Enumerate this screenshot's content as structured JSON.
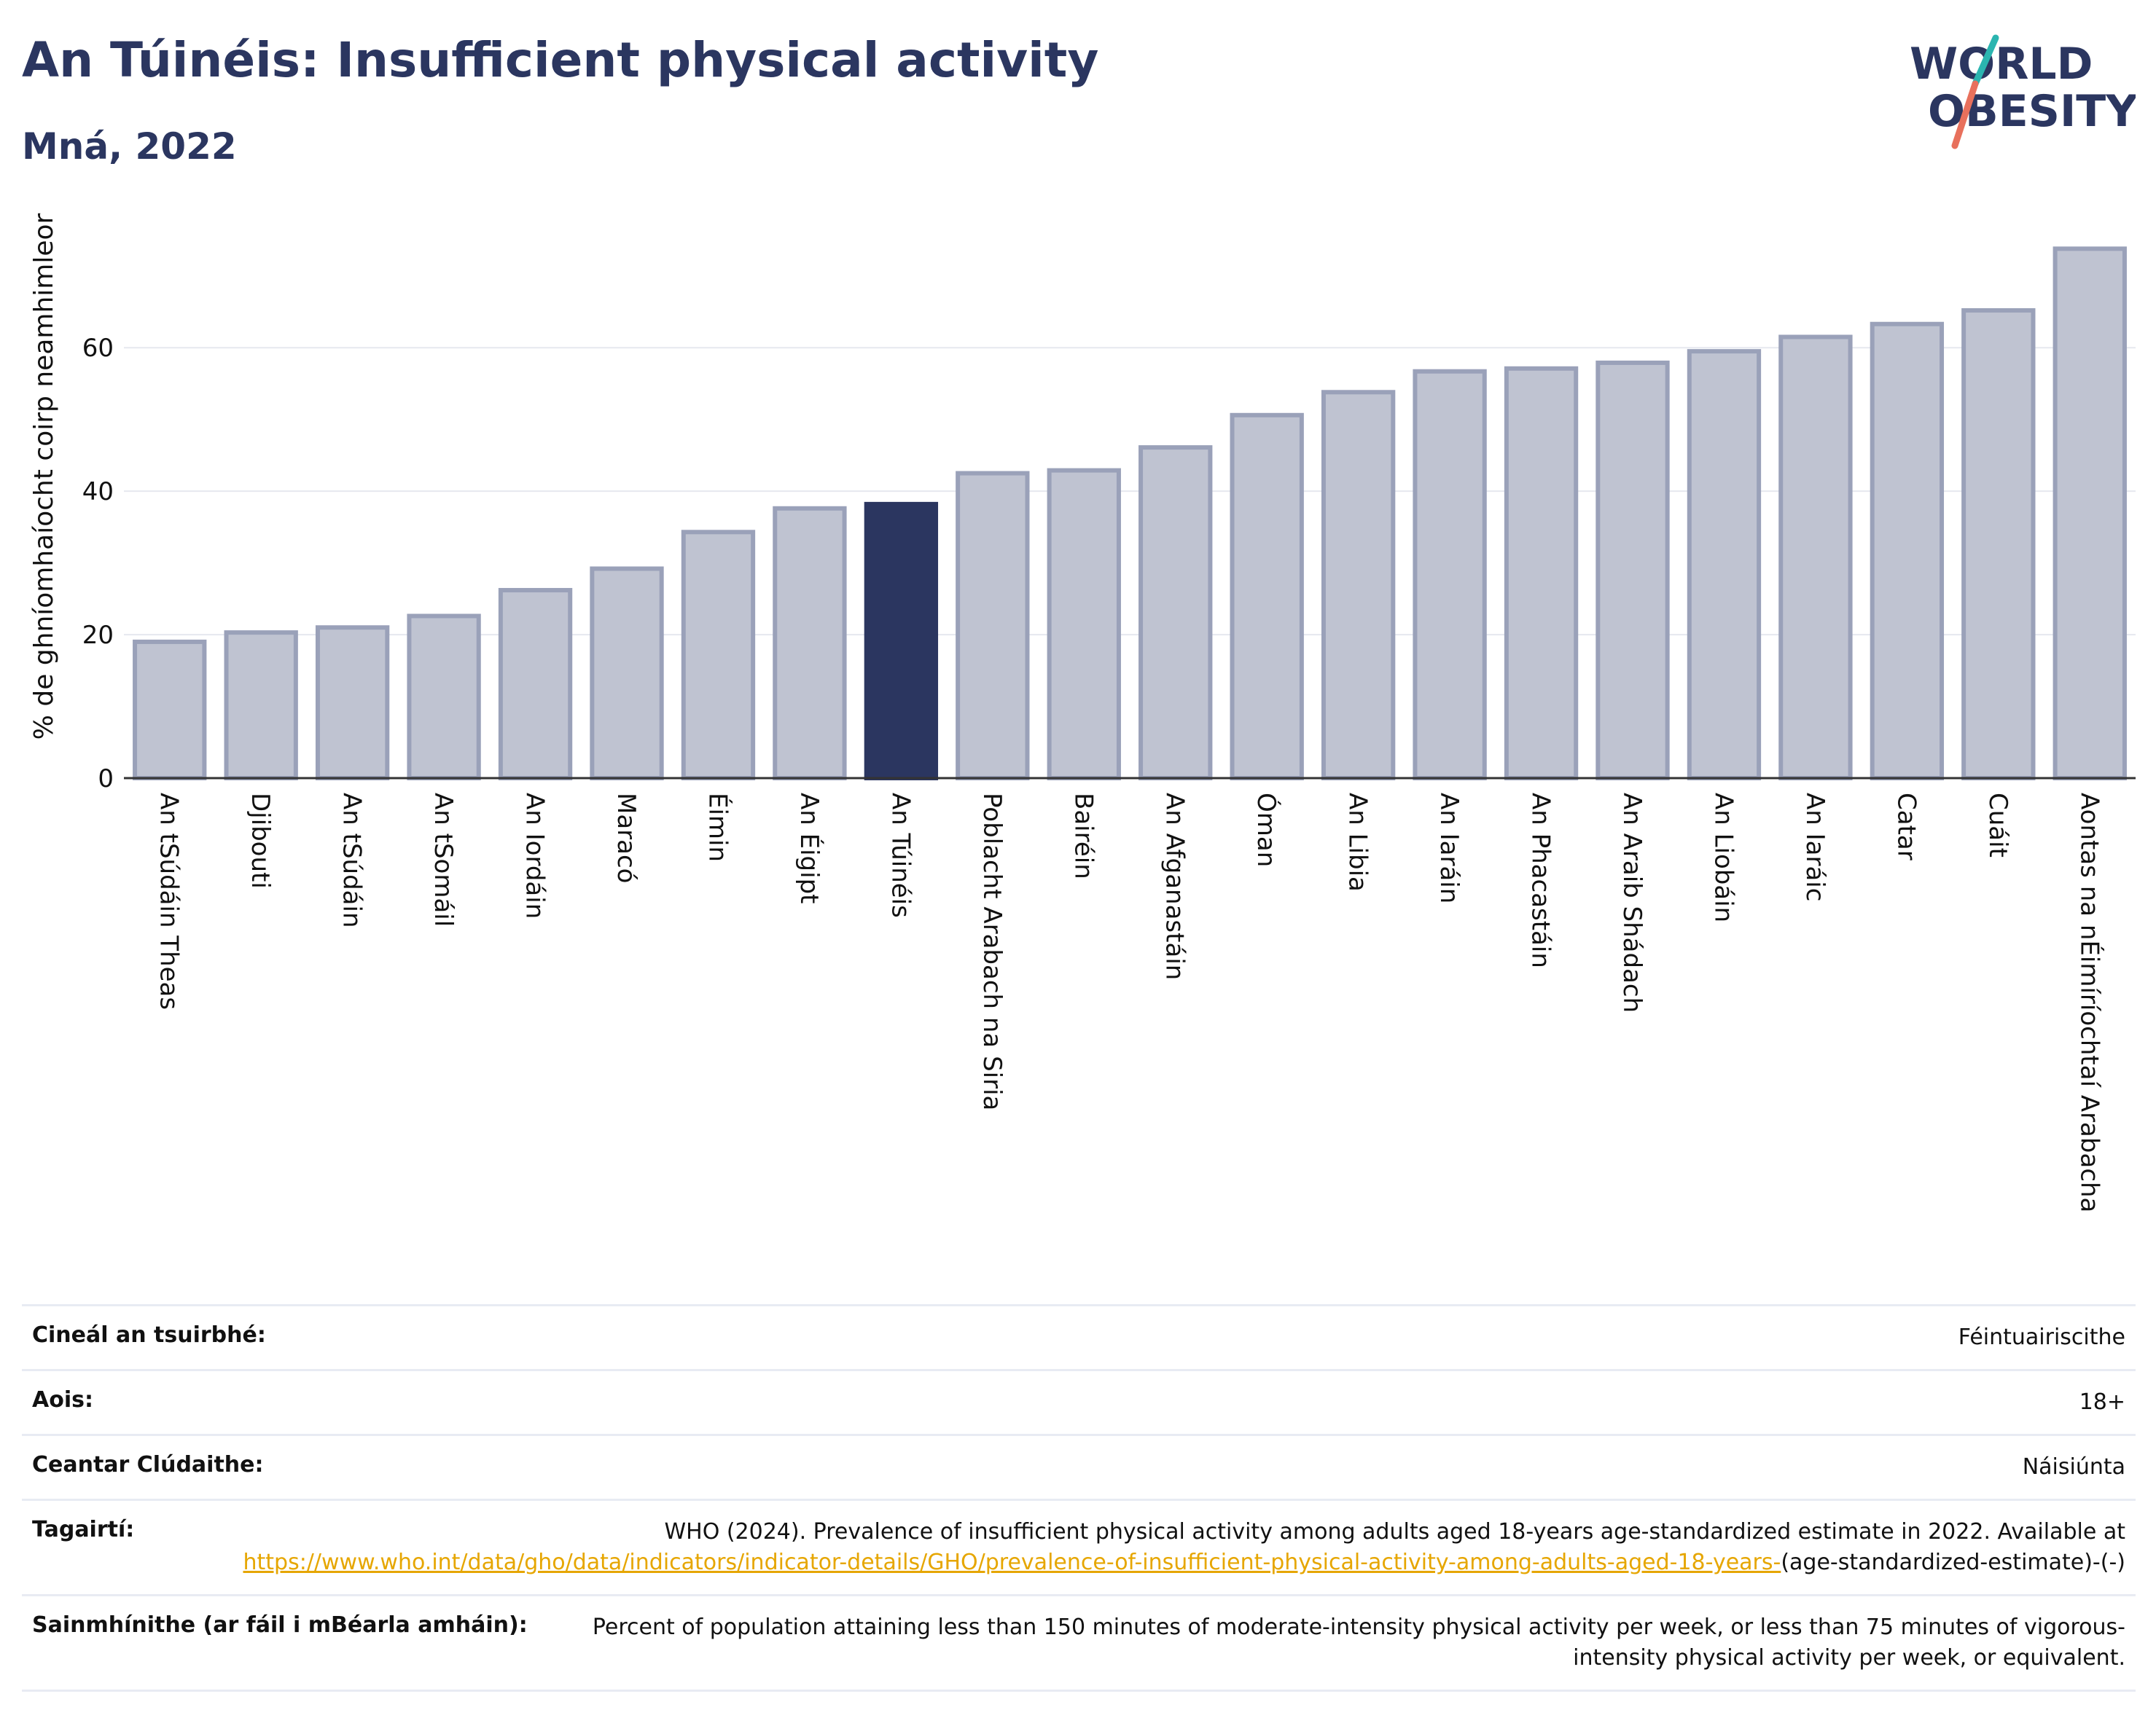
{
  "header": {
    "title": "An Túinéis: Insufficient physical activity",
    "subtitle": "Mná, 2022"
  },
  "logo": {
    "line1": "WORLD",
    "line2": "OBESITY",
    "colors": {
      "text": "#2b3660",
      "slash_top": "#2bb5b0",
      "slash_bottom": "#e8705c"
    }
  },
  "colors": {
    "bar": "#bfc3d1",
    "bar_edge": "#9aa1b9",
    "highlight": "#2b3660",
    "grid": "#e6e8ef",
    "axis": "#333333"
  },
  "chart_data": {
    "type": "bar",
    "ylabel": "% de ghníomhaíocht coirp neamhimleor",
    "ylim": [
      0,
      78
    ],
    "yticks": [
      0,
      20,
      40,
      60
    ],
    "grid": true,
    "highlight": "An Túinéis",
    "categories": [
      "An tSúdáin Theas",
      "Djibouti",
      "An tSúdáin",
      "An tSomáil",
      "An Iordáin",
      "Maracó",
      "Éimin",
      "An Éigipt",
      "An Túinéis",
      "Poblacht Arabach na Siria",
      "Bairéin",
      "An Afganastáin",
      "Óman",
      "An Libia",
      "An Iaráin",
      "An Phacastáin",
      "An Araib Shádach",
      "An Liobáin",
      "An Iaráic",
      "Catar",
      "Cuáit",
      "Aontas na nÉimíríochtaí Arabacha"
    ],
    "values": [
      19.0,
      20.3,
      21.0,
      22.6,
      26.2,
      29.2,
      34.3,
      37.6,
      38.2,
      42.5,
      42.9,
      46.1,
      50.6,
      53.8,
      56.7,
      57.1,
      57.9,
      59.5,
      61.5,
      63.3,
      65.2,
      73.8
    ]
  },
  "info": {
    "survey_type_label": "Cineál an tsuirbhé:",
    "survey_type_value": "Féintuairiscithe",
    "age_label": "Aois:",
    "age_value": "18+",
    "coverage_label": "Ceantar Clúdaithe:",
    "coverage_value": "Náisiúnta",
    "references_label": "Tagairtí:",
    "references_text": "WHO (2024). Prevalence of insufficient physical activity among adults aged 18-years age-standardized estimate in 2022. Available at",
    "references_link": "https://www.who.int/data/gho/data/indicators/indicator-details/GHO/prevalence-of-insufficient-physical-activity-among-adults-aged-18-years-",
    "references_suffix": "(age-standardized-estimate)-(-)",
    "definitions_label": "Sainmhínithe (ar fáil i mBéarla amháin):",
    "definitions_value": "Percent of population attaining less than 150 minutes of moderate-intensity physical activity per week, or less than 75 minutes of vigorous-intensity physical activity per week, or equivalent."
  }
}
